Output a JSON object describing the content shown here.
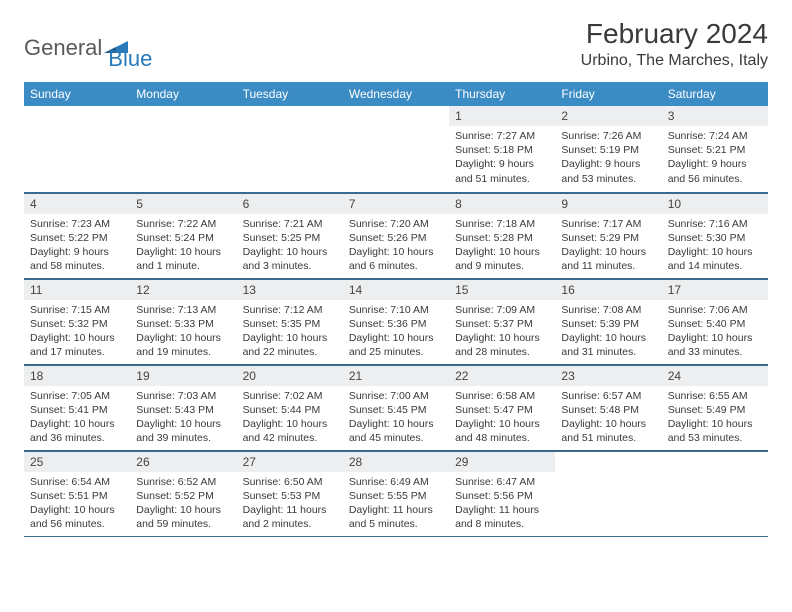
{
  "logo": {
    "text1": "General",
    "text2": "Blue"
  },
  "title": "February 2024",
  "location": "Urbino, The Marches, Italy",
  "style": {
    "header_bg": "#3b8bc4",
    "header_fg": "#ffffff",
    "daynum_bg": "#eceeef",
    "rule_color": "#3b6a8f",
    "title_fontsize": 28,
    "location_fontsize": 16,
    "header_fontsize": 12,
    "daynum_fontsize": 12,
    "body_fontsize": 10.5,
    "logo_color": "#2a7ab9",
    "logo_gray": "#5a5a5a"
  },
  "dayNames": [
    "Sunday",
    "Monday",
    "Tuesday",
    "Wednesday",
    "Thursday",
    "Friday",
    "Saturday"
  ],
  "weeks": [
    [
      null,
      null,
      null,
      null,
      {
        "n": "1",
        "sr": "Sunrise: 7:27 AM",
        "ss": "Sunset: 5:18 PM",
        "dl1": "Daylight: 9 hours",
        "dl2": "and 51 minutes."
      },
      {
        "n": "2",
        "sr": "Sunrise: 7:26 AM",
        "ss": "Sunset: 5:19 PM",
        "dl1": "Daylight: 9 hours",
        "dl2": "and 53 minutes."
      },
      {
        "n": "3",
        "sr": "Sunrise: 7:24 AM",
        "ss": "Sunset: 5:21 PM",
        "dl1": "Daylight: 9 hours",
        "dl2": "and 56 minutes."
      }
    ],
    [
      {
        "n": "4",
        "sr": "Sunrise: 7:23 AM",
        "ss": "Sunset: 5:22 PM",
        "dl1": "Daylight: 9 hours",
        "dl2": "and 58 minutes."
      },
      {
        "n": "5",
        "sr": "Sunrise: 7:22 AM",
        "ss": "Sunset: 5:24 PM",
        "dl1": "Daylight: 10 hours",
        "dl2": "and 1 minute."
      },
      {
        "n": "6",
        "sr": "Sunrise: 7:21 AM",
        "ss": "Sunset: 5:25 PM",
        "dl1": "Daylight: 10 hours",
        "dl2": "and 3 minutes."
      },
      {
        "n": "7",
        "sr": "Sunrise: 7:20 AM",
        "ss": "Sunset: 5:26 PM",
        "dl1": "Daylight: 10 hours",
        "dl2": "and 6 minutes."
      },
      {
        "n": "8",
        "sr": "Sunrise: 7:18 AM",
        "ss": "Sunset: 5:28 PM",
        "dl1": "Daylight: 10 hours",
        "dl2": "and 9 minutes."
      },
      {
        "n": "9",
        "sr": "Sunrise: 7:17 AM",
        "ss": "Sunset: 5:29 PM",
        "dl1": "Daylight: 10 hours",
        "dl2": "and 11 minutes."
      },
      {
        "n": "10",
        "sr": "Sunrise: 7:16 AM",
        "ss": "Sunset: 5:30 PM",
        "dl1": "Daylight: 10 hours",
        "dl2": "and 14 minutes."
      }
    ],
    [
      {
        "n": "11",
        "sr": "Sunrise: 7:15 AM",
        "ss": "Sunset: 5:32 PM",
        "dl1": "Daylight: 10 hours",
        "dl2": "and 17 minutes."
      },
      {
        "n": "12",
        "sr": "Sunrise: 7:13 AM",
        "ss": "Sunset: 5:33 PM",
        "dl1": "Daylight: 10 hours",
        "dl2": "and 19 minutes."
      },
      {
        "n": "13",
        "sr": "Sunrise: 7:12 AM",
        "ss": "Sunset: 5:35 PM",
        "dl1": "Daylight: 10 hours",
        "dl2": "and 22 minutes."
      },
      {
        "n": "14",
        "sr": "Sunrise: 7:10 AM",
        "ss": "Sunset: 5:36 PM",
        "dl1": "Daylight: 10 hours",
        "dl2": "and 25 minutes."
      },
      {
        "n": "15",
        "sr": "Sunrise: 7:09 AM",
        "ss": "Sunset: 5:37 PM",
        "dl1": "Daylight: 10 hours",
        "dl2": "and 28 minutes."
      },
      {
        "n": "16",
        "sr": "Sunrise: 7:08 AM",
        "ss": "Sunset: 5:39 PM",
        "dl1": "Daylight: 10 hours",
        "dl2": "and 31 minutes."
      },
      {
        "n": "17",
        "sr": "Sunrise: 7:06 AM",
        "ss": "Sunset: 5:40 PM",
        "dl1": "Daylight: 10 hours",
        "dl2": "and 33 minutes."
      }
    ],
    [
      {
        "n": "18",
        "sr": "Sunrise: 7:05 AM",
        "ss": "Sunset: 5:41 PM",
        "dl1": "Daylight: 10 hours",
        "dl2": "and 36 minutes."
      },
      {
        "n": "19",
        "sr": "Sunrise: 7:03 AM",
        "ss": "Sunset: 5:43 PM",
        "dl1": "Daylight: 10 hours",
        "dl2": "and 39 minutes."
      },
      {
        "n": "20",
        "sr": "Sunrise: 7:02 AM",
        "ss": "Sunset: 5:44 PM",
        "dl1": "Daylight: 10 hours",
        "dl2": "and 42 minutes."
      },
      {
        "n": "21",
        "sr": "Sunrise: 7:00 AM",
        "ss": "Sunset: 5:45 PM",
        "dl1": "Daylight: 10 hours",
        "dl2": "and 45 minutes."
      },
      {
        "n": "22",
        "sr": "Sunrise: 6:58 AM",
        "ss": "Sunset: 5:47 PM",
        "dl1": "Daylight: 10 hours",
        "dl2": "and 48 minutes."
      },
      {
        "n": "23",
        "sr": "Sunrise: 6:57 AM",
        "ss": "Sunset: 5:48 PM",
        "dl1": "Daylight: 10 hours",
        "dl2": "and 51 minutes."
      },
      {
        "n": "24",
        "sr": "Sunrise: 6:55 AM",
        "ss": "Sunset: 5:49 PM",
        "dl1": "Daylight: 10 hours",
        "dl2": "and 53 minutes."
      }
    ],
    [
      {
        "n": "25",
        "sr": "Sunrise: 6:54 AM",
        "ss": "Sunset: 5:51 PM",
        "dl1": "Daylight: 10 hours",
        "dl2": "and 56 minutes."
      },
      {
        "n": "26",
        "sr": "Sunrise: 6:52 AM",
        "ss": "Sunset: 5:52 PM",
        "dl1": "Daylight: 10 hours",
        "dl2": "and 59 minutes."
      },
      {
        "n": "27",
        "sr": "Sunrise: 6:50 AM",
        "ss": "Sunset: 5:53 PM",
        "dl1": "Daylight: 11 hours",
        "dl2": "and 2 minutes."
      },
      {
        "n": "28",
        "sr": "Sunrise: 6:49 AM",
        "ss": "Sunset: 5:55 PM",
        "dl1": "Daylight: 11 hours",
        "dl2": "and 5 minutes."
      },
      {
        "n": "29",
        "sr": "Sunrise: 6:47 AM",
        "ss": "Sunset: 5:56 PM",
        "dl1": "Daylight: 11 hours",
        "dl2": "and 8 minutes."
      },
      null,
      null
    ]
  ]
}
